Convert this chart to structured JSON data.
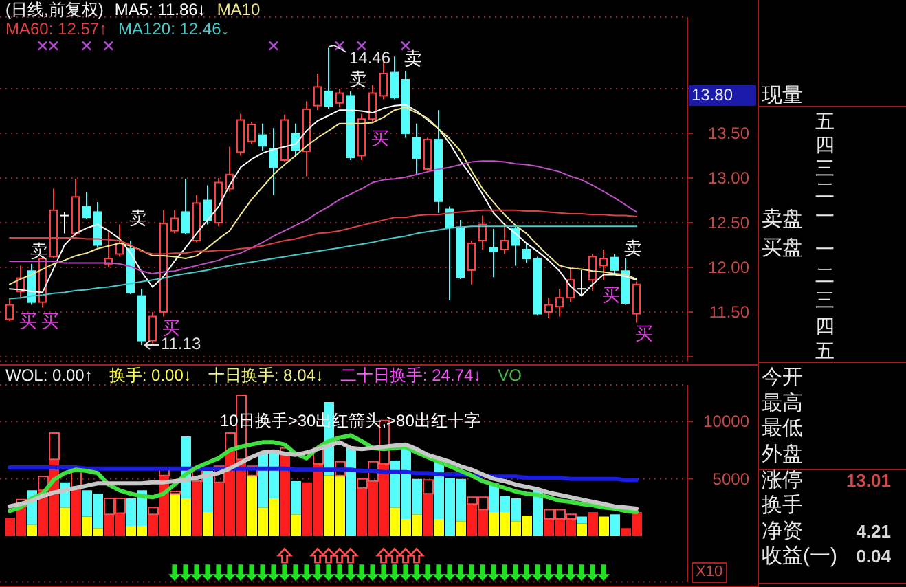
{
  "chart_data": [
    {
      "type": "candlestick",
      "title": "(日线,前复权)",
      "legend": "top left",
      "grid": "y",
      "tick_labels": "y",
      "categories": [
        null,
        null,
        null,
        null,
        null,
        null,
        null,
        null,
        null,
        null,
        null,
        null,
        null,
        null,
        null,
        null,
        null,
        null,
        null,
        null,
        null,
        null,
        null,
        null,
        null,
        null,
        null,
        null,
        null,
        null,
        null,
        null,
        null,
        null,
        null,
        null,
        null,
        null,
        null,
        null,
        null,
        null,
        null,
        null,
        null,
        null,
        null,
        null,
        null,
        null,
        null,
        null,
        null,
        null,
        null,
        null,
        null,
        null
      ],
      "ohlc": [
        [
          11.42,
          11.65,
          11.4,
          11.58
        ],
        [
          11.73,
          12.02,
          11.65,
          11.88
        ],
        [
          11.96,
          12.04,
          11.58,
          11.61
        ],
        [
          11.61,
          12.12,
          11.55,
          12.1
        ],
        [
          12.12,
          12.88,
          12.1,
          12.64
        ],
        [
          12.58,
          12.62,
          12.38,
          12.58
        ],
        [
          12.38,
          12.99,
          12.35,
          12.79
        ],
        [
          12.68,
          12.84,
          12.54,
          12.56
        ],
        [
          12.62,
          12.73,
          12.22,
          12.25
        ],
        [
          12.04,
          12.42,
          12.0,
          12.1
        ],
        [
          12.15,
          12.48,
          12.12,
          12.27
        ],
        [
          12.21,
          12.3,
          11.7,
          11.72
        ],
        [
          11.68,
          11.76,
          11.13,
          11.18
        ],
        [
          11.18,
          11.5,
          11.15,
          11.45
        ],
        [
          11.5,
          12.64,
          11.45,
          12.49
        ],
        [
          12.41,
          12.64,
          12.38,
          12.55
        ],
        [
          12.62,
          12.99,
          12.37,
          12.39
        ],
        [
          12.3,
          12.81,
          12.28,
          12.72
        ],
        [
          12.75,
          12.92,
          12.48,
          12.53
        ],
        [
          12.5,
          13.0,
          12.46,
          12.95
        ],
        [
          12.88,
          13.35,
          12.85,
          13.04
        ],
        [
          13.29,
          13.72,
          13.25,
          13.65
        ],
        [
          13.41,
          13.63,
          13.38,
          13.6
        ],
        [
          13.48,
          13.61,
          13.3,
          13.36
        ],
        [
          13.33,
          13.56,
          12.81,
          13.12
        ],
        [
          13.2,
          13.71,
          13.18,
          13.65
        ],
        [
          13.5,
          13.61,
          13.25,
          13.31
        ],
        [
          13.3,
          13.86,
          13.02,
          13.77
        ],
        [
          13.81,
          14.17,
          13.76,
          14.02
        ],
        [
          13.97,
          14.46,
          13.77,
          13.8
        ],
        [
          13.84,
          14.0,
          13.79,
          13.95
        ],
        [
          13.92,
          13.97,
          13.2,
          13.23
        ],
        [
          13.25,
          13.72,
          13.2,
          13.66
        ],
        [
          13.66,
          14.04,
          13.62,
          13.95
        ],
        [
          13.92,
          14.33,
          13.88,
          14.17
        ],
        [
          14.18,
          14.36,
          13.88,
          13.9
        ],
        [
          14.1,
          14.2,
          13.45,
          13.5
        ],
        [
          13.45,
          13.61,
          13.04,
          13.22
        ],
        [
          13.1,
          13.45,
          13.08,
          13.43
        ],
        [
          13.43,
          13.76,
          12.61,
          12.74
        ],
        [
          12.65,
          12.68,
          11.63,
          12.45
        ],
        [
          12.45,
          12.53,
          11.87,
          11.89
        ],
        [
          11.97,
          12.3,
          11.81,
          12.27
        ],
        [
          12.3,
          12.58,
          12.2,
          12.48
        ],
        [
          12.22,
          12.43,
          11.89,
          12.18
        ],
        [
          12.2,
          12.48,
          12.15,
          12.3
        ],
        [
          12.43,
          12.48,
          12.02,
          12.25
        ],
        [
          12.2,
          12.27,
          12.05,
          12.1
        ],
        [
          12.1,
          12.12,
          11.46,
          11.48
        ],
        [
          11.5,
          11.66,
          11.43,
          11.58
        ],
        [
          11.56,
          11.76,
          11.45,
          11.66
        ],
        [
          11.66,
          11.99,
          11.61,
          11.86
        ],
        [
          11.76,
          11.97,
          11.68,
          11.76
        ],
        [
          11.86,
          12.15,
          11.74,
          12.12
        ],
        [
          12.02,
          12.2,
          11.86,
          12.1
        ],
        [
          12.11,
          12.15,
          11.92,
          11.97
        ],
        [
          11.96,
          12.1,
          11.58,
          11.6
        ],
        [
          11.48,
          11.84,
          11.38,
          11.81
        ]
      ],
      "colors": [
        "#ff4040",
        "#ff4040",
        "#54fcfc",
        "#ff4040",
        "#ff4040",
        "#ffffff",
        "#ff4040",
        "#54fcfc",
        "#54fcfc",
        "#ff4040",
        "#ff4040",
        "#54fcfc",
        "#54fcfc",
        "#ff4040",
        "#ff4040",
        "#ff4040",
        "#54fcfc",
        "#ff4040",
        "#54fcfc",
        "#ff4040",
        "#ff4040",
        "#ff4040",
        "#ff4040",
        "#54fcfc",
        "#54fcfc",
        "#ff4040",
        "#54fcfc",
        "#ff4040",
        "#ff4040",
        "#54fcfc",
        "#ff4040",
        "#54fcfc",
        "#ff4040",
        "#ff4040",
        "#ff4040",
        "#54fcfc",
        "#54fcfc",
        "#54fcfc",
        "#ff4040",
        "#54fcfc",
        "#54fcfc",
        "#54fcfc",
        "#ff4040",
        "#ff4040",
        "#54fcfc",
        "#ff4040",
        "#54fcfc",
        "#54fcfc",
        "#54fcfc",
        "#ff4040",
        "#ff4040",
        "#ff4040",
        "#ffffff",
        "#ff4040",
        "#ff4040",
        "#54fcfc",
        "#54fcfc",
        "#ff4040"
      ],
      "series": [
        {
          "type": "line",
          "name": "MA5: 11.86↓",
          "color": "#ffffff",
          "values": [
            11.76,
            11.75,
            11.73,
            11.72,
            11.99,
            12.25,
            12.38,
            12.44,
            12.48,
            12.41,
            12.32,
            12.16,
            11.95,
            11.78,
            11.9,
            12.07,
            12.22,
            12.38,
            12.53,
            12.68,
            12.92,
            13.12,
            13.21,
            13.28,
            13.32,
            13.35,
            13.38,
            13.53,
            13.64,
            13.7,
            13.76,
            13.76,
            13.75,
            13.73,
            13.78,
            13.81,
            13.82,
            13.75,
            13.65,
            13.55,
            13.39,
            13.19,
            13.02,
            12.82,
            12.61,
            12.48,
            12.38,
            12.27,
            12.18,
            12.08,
            11.96,
            11.79,
            11.68,
            11.81,
            11.92,
            11.92,
            11.9,
            11.86
          ]
        },
        {
          "type": "line",
          "name": "MA10",
          "color": "#f0e68c",
          "values": [
            11.81,
            11.87,
            11.92,
            11.98,
            12.04,
            12.08,
            12.13,
            12.16,
            12.21,
            12.24,
            12.27,
            12.24,
            12.19,
            12.13,
            12.13,
            12.12,
            12.1,
            12.13,
            12.22,
            12.32,
            12.41,
            12.59,
            12.76,
            12.9,
            13.04,
            13.15,
            13.25,
            13.36,
            13.45,
            13.53,
            13.61,
            13.61,
            13.61,
            13.62,
            13.68,
            13.76,
            13.79,
            13.73,
            13.67,
            13.55,
            13.44,
            13.3,
            13.08,
            12.88,
            12.73,
            12.59,
            12.47,
            12.38,
            12.25,
            12.13,
            12.02,
            11.99,
            11.98,
            11.96,
            11.95,
            11.93,
            11.92,
            11.87
          ]
        },
        {
          "type": "line",
          "color": "#c050c8",
          "values": [
            12.07,
            12.07,
            12.07,
            12.07,
            12.07,
            12.05,
            12.05,
            12.05,
            12.05,
            12.05,
            12.04,
            12.01,
            11.96,
            11.93,
            11.95,
            11.96,
            11.99,
            12.02,
            12.05,
            12.08,
            12.13,
            12.16,
            12.22,
            12.28,
            12.35,
            12.41,
            12.47,
            12.53,
            12.61,
            12.68,
            12.76,
            12.82,
            12.88,
            12.95,
            12.98,
            12.99,
            13.01,
            13.04,
            13.07,
            13.1,
            13.12,
            13.15,
            13.18,
            13.19,
            13.19,
            13.18,
            13.16,
            13.15,
            13.13,
            13.1,
            13.07,
            13.02,
            12.98,
            12.92,
            12.85,
            12.78,
            12.7,
            12.62
          ]
        },
        {
          "type": "line",
          "name": "MA60: 12.57↑",
          "color": "#e04040",
          "values": [
            12.33,
            12.33,
            12.33,
            12.33,
            12.33,
            12.33,
            12.33,
            12.32,
            12.32,
            12.31,
            12.3,
            12.25,
            12.18,
            12.15,
            12.15,
            12.16,
            12.16,
            12.18,
            12.18,
            12.19,
            12.19,
            12.21,
            12.22,
            12.24,
            12.27,
            12.3,
            12.32,
            12.35,
            12.38,
            12.39,
            12.41,
            12.44,
            12.47,
            12.5,
            12.53,
            12.56,
            12.56,
            12.58,
            12.59,
            12.59,
            12.61,
            12.62,
            12.63,
            12.64,
            12.64,
            12.64,
            12.64,
            12.63,
            12.63,
            12.62,
            12.61,
            12.6,
            12.6,
            12.59,
            12.59,
            12.58,
            12.58,
            12.57
          ]
        },
        {
          "type": "line",
          "name": "MA120: 12.46↓",
          "color": "#48c8c8",
          "values": [
            11.65,
            11.66,
            11.68,
            11.69,
            11.71,
            11.72,
            11.74,
            11.75,
            11.77,
            11.78,
            11.8,
            11.82,
            11.84,
            11.86,
            11.88,
            11.91,
            11.93,
            11.95,
            11.97,
            12.0,
            12.02,
            12.04,
            12.06,
            12.08,
            12.1,
            12.12,
            12.14,
            12.16,
            12.18,
            12.2,
            12.22,
            12.24,
            12.26,
            12.28,
            12.31,
            12.33,
            12.35,
            12.38,
            12.4,
            12.42,
            12.44,
            12.45,
            12.46,
            12.46,
            12.46,
            12.46,
            12.46,
            12.46,
            12.46,
            12.46,
            12.46,
            12.46,
            12.46,
            12.46,
            12.46,
            12.46,
            12.46,
            12.46
          ]
        },
        {
          "type": "scatter",
          "marker": "cross",
          "color": "#b048d0",
          "values": [
            null,
            null,
            null,
            14.48,
            14.48,
            null,
            null,
            14.48,
            null,
            14.48,
            null,
            null,
            null,
            null,
            null,
            null,
            null,
            null,
            null,
            null,
            null,
            null,
            null,
            null,
            14.48,
            null,
            null,
            null,
            null,
            null,
            14.48,
            null,
            14.48,
            null,
            null,
            null,
            14.48,
            null,
            null,
            null,
            null,
            null,
            null,
            null,
            null,
            null,
            null,
            null,
            null,
            null,
            null,
            null,
            null,
            null,
            null,
            null,
            null,
            null
          ]
        }
      ],
      "annotations": [
        "14.46",
        "11.13",
        "13.80",
        "卖",
        "卖",
        "卖",
        "卖",
        "卖",
        "买",
        "买",
        "买",
        "买",
        "买",
        "买"
      ],
      "ylim": [
        10.95,
        14.8
      ],
      "yticks": [
        {
          "value": 11,
          "label": null
        },
        {
          "value": 11.5,
          "label": "11.50"
        },
        {
          "value": 12,
          "label": "12.00"
        },
        {
          "value": 12.5,
          "label": "12.50"
        },
        {
          "value": 13,
          "label": "13.00"
        },
        {
          "value": 13.5,
          "label": "13.50"
        },
        {
          "value": 14,
          "label": null
        }
      ]
    },
    {
      "type": "bar",
      "stacked": true,
      "grid": "y",
      "tick_labels": "y",
      "categories": [
        null,
        null,
        null,
        null,
        null,
        null,
        null,
        null,
        null,
        null,
        null,
        null,
        null,
        null,
        null,
        null,
        null,
        null,
        null,
        null,
        null,
        null,
        null,
        null,
        null,
        null,
        null,
        null,
        null,
        null,
        null,
        null,
        null,
        null,
        null,
        null,
        null,
        null,
        null,
        null,
        null,
        null,
        null,
        null,
        null,
        null,
        null,
        null,
        null,
        null,
        null,
        null,
        null,
        null,
        null,
        null,
        null,
        null
      ],
      "series": [
        {
          "color": "#ffff00",
          "values": [
            null,
            null,
            1000,
            null,
            null,
            2500,
            null,
            1700,
            700,
            null,
            null,
            900,
            900,
            null,
            null,
            3700,
            3300,
            null,
            2100,
            null,
            null,
            null,
            5300,
            2500,
            3300,
            null,
            1900,
            null,
            null,
            5300,
            5300,
            null,
            null,
            null,
            null,
            2500,
            1500,
            1900,
            null,
            1500,
            null,
            1300,
            null,
            null,
            2100,
            2100,
            1300,
            1800,
            null,
            null,
            null,
            null,
            1100,
            null,
            1700,
            null,
            null,
            null
          ]
        },
        {
          "values": [
            1600,
            2600,
            3000,
            4000,
            6700,
            2200,
            4300,
            2300,
            3000,
            1900,
            2000,
            2400,
            3100,
            1900,
            5300,
            null,
            5400,
            4800,
            3600,
            4700,
            7500,
            6700,
            null,
            4800,
            4200,
            7100,
            2900,
            4700,
            6300,
            6400,
            null,
            7700,
            4200,
            4800,
            6300,
            4100,
            6200,
            3100,
            3700,
            5200,
            5100,
            3700,
            2800,
            2300,
            2500,
            1400,
            2000,
            null,
            4100,
            1500,
            1500,
            1500,
            600,
            2100,
            null,
            1900,
            700,
            2100
          ],
          "colors": [
            "#ff1c1c",
            "#ff1c1c",
            "#54fcfc",
            "#ff1c1c",
            "#ff1c1c",
            "#54fcfc",
            "#ff1c1c",
            "#54fcfc",
            "#54fcfc",
            "#ff1c1c",
            "#ff1c1c",
            "#54fcfc",
            "#54fcfc",
            "#ff1c1c",
            "#ff1c1c",
            null,
            "#54fcfc",
            "#ff1c1c",
            "#54fcfc",
            "#ff1c1c",
            "#ff1c1c",
            "#ff1c1c",
            null,
            "#54fcfc",
            "#54fcfc",
            "#ff1c1c",
            "#54fcfc",
            "#ff1c1c",
            "#ff1c1c",
            "#54fcfc",
            null,
            "#54fcfc",
            "#ff1c1c",
            "#ff1c1c",
            "#ff1c1c",
            "#54fcfc",
            "#54fcfc",
            "#54fcfc",
            "#ff1c1c",
            "#54fcfc",
            "#54fcfc",
            "#54fcfc",
            "#ff1c1c",
            "#ff1c1c",
            "#54fcfc",
            "#54fcfc",
            "#54fcfc",
            null,
            "#54fcfc",
            "#ff1c1c",
            "#ff1c1c",
            "#ff1c1c",
            "#54fcfc",
            "#ff1c1c",
            null,
            "#54fcfc",
            "#ff1c1c",
            "#ff1c1c"
          ]
        },
        {
          "color": "#ff4848",
          "values": [
            null,
            600,
            null,
            1200,
            2300,
            null,
            1400,
            null,
            null,
            1400,
            1300,
            null,
            null,
            600,
            700,
            200,
            null,
            1200,
            null,
            1400,
            1500,
            5600,
            800,
            null,
            null,
            600,
            null,
            null,
            1400,
            null,
            1200,
            null,
            800,
            1700,
            3800,
            null,
            null,
            null,
            1200,
            null,
            null,
            null,
            600,
            1100,
            null,
            null,
            null,
            null,
            null,
            800,
            800,
            400,
            null,
            null,
            null,
            null,
            null,
            null
          ]
        },
        {
          "type": "line",
          "color": "#1c1ce0",
          "values": [
            6000,
            6000,
            6000,
            6000,
            6000,
            6000,
            6000,
            5900,
            5900,
            5900,
            5900,
            5900,
            5900,
            5900,
            5900,
            5900,
            5900,
            5900,
            5900,
            5900,
            5900,
            5900,
            5900,
            5900,
            5900,
            5900,
            5800,
            5800,
            5800,
            5800,
            5800,
            5800,
            5700,
            5700,
            5600,
            5600,
            5600,
            5500,
            5500,
            5400,
            5400,
            5400,
            5300,
            5300,
            5200,
            5200,
            5200,
            5100,
            5100,
            5100,
            5100,
            5000,
            5000,
            5000,
            5000,
            5000,
            4900,
            4900
          ]
        },
        {
          "type": "line",
          "color": "#40e040",
          "values": [
            2200,
            2500,
            3300,
            3700,
            4900,
            5500,
            5800,
            5700,
            5500,
            4500,
            4000,
            3700,
            3500,
            3400,
            3700,
            4500,
            5400,
            6000,
            6400,
            6800,
            7500,
            7800,
            8000,
            8200,
            8200,
            8000,
            7200,
            6800,
            7700,
            8300,
            8600,
            8800,
            8300,
            7700,
            7600,
            7700,
            7800,
            7300,
            6900,
            6500,
            6100,
            5700,
            5300,
            4800,
            4500,
            4200,
            3900,
            3700,
            3600,
            3400,
            3100,
            3000,
            2800,
            2700,
            2500,
            2400,
            2200,
            2100
          ]
        },
        {
          "type": "line",
          "color": "#c8c8c8",
          "values": [
            2600,
            2800,
            3100,
            3500,
            3800,
            4000,
            4200,
            4400,
            4600,
            4600,
            4600,
            4600,
            4600,
            4700,
            4700,
            4800,
            4900,
            5100,
            5300,
            5500,
            5900,
            6400,
            6900,
            7300,
            7400,
            7200,
            7100,
            7300,
            7600,
            7900,
            8200,
            7700,
            7600,
            7700,
            7800,
            7900,
            8000,
            7600,
            7100,
            6800,
            6500,
            6100,
            5800,
            5400,
            5000,
            4800,
            4500,
            4300,
            4100,
            3800,
            3600,
            3400,
            3200,
            3000,
            2800,
            2600,
            2500,
            2400
          ]
        },
        {
          "type": "scatter",
          "marker": "triangle",
          "color": "#ff5050",
          "values": [
            null,
            null,
            null,
            null,
            null,
            null,
            null,
            null,
            null,
            null,
            null,
            null,
            null,
            null,
            null,
            null,
            null,
            null,
            null,
            null,
            null,
            null,
            null,
            null,
            null,
            -1700,
            null,
            null,
            -1700,
            -1700,
            -1700,
            -1700,
            null,
            null,
            -1700,
            -1700,
            -1700,
            -1700,
            null,
            null,
            null,
            null,
            null,
            null,
            null,
            null,
            null,
            null,
            null,
            null,
            null,
            null,
            null,
            null,
            null,
            null,
            null,
            null
          ]
        },
        {
          "type": "scatter",
          "marker": "triangle-down",
          "color": "#20e020",
          "values": [
            null,
            null,
            null,
            null,
            null,
            null,
            null,
            null,
            null,
            null,
            null,
            null,
            null,
            null,
            null,
            -3200,
            -3200,
            -3200,
            -3200,
            -3200,
            -3200,
            -3200,
            -3200,
            -3200,
            -3200,
            -3200,
            -3200,
            -3200,
            -3200,
            -3200,
            -3200,
            -3200,
            -3200,
            -3200,
            -3200,
            -3200,
            -3200,
            -3200,
            -3200,
            -3200,
            -3200,
            -3200,
            -3200,
            -3200,
            -3200,
            -3200,
            -3200,
            -3200,
            -3200,
            -3200,
            -3200,
            -3200,
            -3200,
            -3200,
            -3200,
            null,
            null,
            null
          ]
        }
      ],
      "annotations": [
        "WOL: 0.00↑",
        "换手: 0.00↓",
        "十日换手: 8.04↓",
        "二十日换手: 24.74↓",
        "VO",
        "10日换手>30出红箭头,>80出红十字",
        "X10"
      ],
      "ylim": [
        -4000,
        13200
      ],
      "yticks": [
        5000,
        10000
      ]
    },
    {
      "type": "other",
      "annotations": [
        "现量",
        "五",
        "四",
        "三",
        "二",
        "一",
        "卖盘",
        "买盘",
        "一",
        "二",
        "三",
        "四",
        "五",
        "今开",
        "最高",
        "最低",
        "外盘",
        "涨停",
        "13.01",
        "换手",
        "净资",
        "4.21",
        "收益(一)",
        "0.04"
      ]
    }
  ]
}
